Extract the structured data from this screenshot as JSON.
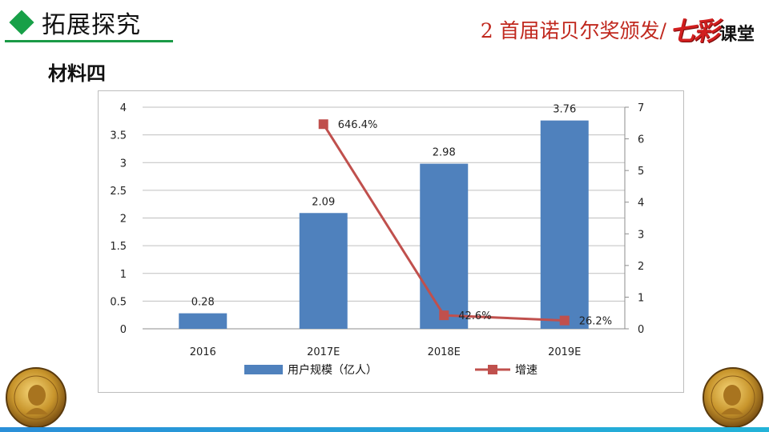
{
  "header": {
    "section_title": "拓展探究",
    "lesson_title": "2  首届诺贝尔奖颁发/",
    "brand_seven": "七彩",
    "brand_class": "课堂"
  },
  "subtitle": "材料四",
  "colors": {
    "bar": "#4f81bd",
    "line": "#c0504d",
    "accent_green": "#18a048",
    "title_red": "#c0281e"
  },
  "chart_data": {
    "type": "bar",
    "categories": [
      "2016",
      "2017E",
      "2018E",
      "2019E"
    ],
    "series": [
      {
        "name": "用户规模（亿人）",
        "type": "bar",
        "axis": "left",
        "values": [
          0.28,
          2.09,
          2.98,
          3.76
        ],
        "labels": [
          "0.28",
          "2.09",
          "2.98",
          "3.76"
        ]
      },
      {
        "name": "增速",
        "type": "line",
        "axis": "right",
        "values": [
          null,
          6.464,
          0.426,
          0.262
        ],
        "labels": [
          "",
          "646.4%",
          "42.6%",
          "26.2%"
        ]
      }
    ],
    "y_left": {
      "ylim": [
        0,
        4
      ],
      "ticks": [
        "0",
        "0.5",
        "1",
        "1.5",
        "2",
        "2.5",
        "3",
        "3.5",
        "4"
      ]
    },
    "y_right": {
      "ylim": [
        0,
        7
      ],
      "ticks": [
        "0",
        "1",
        "2",
        "3",
        "4",
        "5",
        "6",
        "7"
      ]
    },
    "grid": true,
    "legend": "bottom"
  }
}
